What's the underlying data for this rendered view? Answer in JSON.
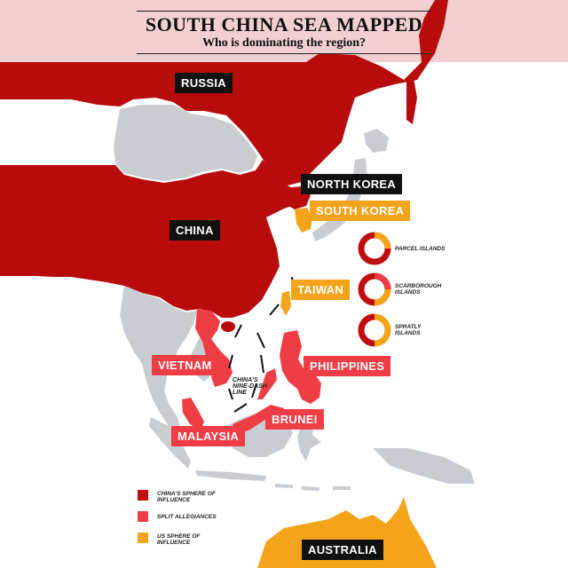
{
  "title": "SOUTH CHINA SEA MAPPED",
  "subtitle": "Who is dominating the region?",
  "colors": {
    "china_sphere": "#c00e0e",
    "split": "#ee3d45",
    "us_sphere": "#f4a41a",
    "neutral_land": "#c9cdd2",
    "sea": "#ffffff"
  },
  "countries": {
    "russia": "RUSSIA",
    "china": "CHINA",
    "north_korea": "NORTH KOREA",
    "south_korea": "SOUTH KOREA",
    "taiwan": "TAIWAN",
    "vietnam": "VIETNAM",
    "philippines": "PHILIPPINES",
    "brunei": "BRUNEI",
    "malaysia": "MALAYSIA",
    "australia": "AUSTRALIA"
  },
  "nine_dash_line": "CHINA'S NINE-DASH LINE",
  "islands": [
    {
      "name": "PARCEL ISLANDS",
      "icon": "parcel-islands-ring-icon"
    },
    {
      "name": "SCARBOROUGH ISLANDS",
      "icon": "scarborough-islands-ring-icon"
    },
    {
      "name": "SPRATLY ISLANDS",
      "icon": "spratly-islands-ring-icon"
    }
  ],
  "legend": [
    {
      "label": "CHINA'S SPHERE OF INFLUENCE",
      "color": "#c00e0e"
    },
    {
      "label": "SPLIT ALLEGIANCES",
      "color": "#ee3d45"
    },
    {
      "label": "US SPHERE OF INFLUENCE",
      "color": "#f4a41a"
    }
  ]
}
